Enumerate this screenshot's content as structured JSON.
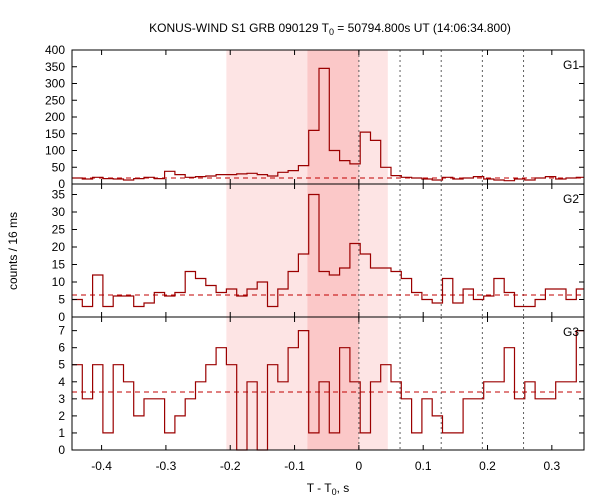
{
  "title": {
    "prefix": "KONUS-WIND S1 GRB 090129 T",
    "sub": "0",
    "suffix": " = 50794.800s UT (14:06:34.800)"
  },
  "colors": {
    "data_line": "#9b0000",
    "background_line": "#c00000",
    "shade_outer": "#fde4e4",
    "shade_inner": "#fbc8c8",
    "frame": "#000000",
    "marker_lines": "#606060"
  },
  "chart_data": {
    "type": "line",
    "step": true,
    "bin_width_s": 0.016,
    "xlabel": {
      "text": "T - T",
      "sub": "0",
      "suffix": ", s"
    },
    "ylabel": "counts / 16 ms",
    "xlim": [
      -0.446,
      0.35
    ],
    "xticks": [
      -0.4,
      -0.3,
      -0.2,
      -0.1,
      0,
      0.1,
      0.2,
      0.3
    ],
    "xtick_labels": [
      "-0.4",
      "-0.3",
      "-0.2",
      "-0.1",
      "0",
      "0.1",
      "0.2",
      "0.3"
    ],
    "shaded_intervals": [
      {
        "from": -0.206,
        "to": 0.045,
        "shade": "outer"
      },
      {
        "from": -0.08,
        "to": 0.0,
        "shade": "inner"
      }
    ],
    "marker_lines_x": [
      0.0,
      0.064,
      0.128,
      0.192,
      0.256
    ],
    "x_edges": [
      -0.446,
      -0.43,
      -0.414,
      -0.398,
      -0.382,
      -0.366,
      -0.35,
      -0.334,
      -0.318,
      -0.302,
      -0.286,
      -0.27,
      -0.254,
      -0.238,
      -0.222,
      -0.206,
      -0.19,
      -0.174,
      -0.158,
      -0.142,
      -0.126,
      -0.11,
      -0.094,
      -0.078,
      -0.062,
      -0.046,
      -0.03,
      -0.014,
      0.002,
      0.018,
      0.034,
      0.05,
      0.066,
      0.082,
      0.098,
      0.114,
      0.13,
      0.146,
      0.162,
      0.178,
      0.194,
      0.21,
      0.226,
      0.242,
      0.258,
      0.274,
      0.29,
      0.306,
      0.322,
      0.338,
      0.354
    ],
    "panels": [
      {
        "name": "G1",
        "ylim": [
          0,
          400
        ],
        "yticks": [
          0,
          50,
          100,
          150,
          200,
          250,
          300,
          350,
          400
        ],
        "ytick_labels": [
          "0",
          "50",
          "100",
          "150",
          "200",
          "250",
          "300",
          "350",
          "400"
        ],
        "background": 18,
        "values": [
          18,
          15,
          20,
          16,
          15,
          12,
          16,
          20,
          16,
          38,
          28,
          20,
          22,
          24,
          28,
          28,
          30,
          32,
          28,
          24,
          35,
          40,
          55,
          160,
          345,
          100,
          70,
          60,
          155,
          130,
          50,
          25,
          20,
          18,
          15,
          12,
          20,
          15,
          18,
          22,
          15,
          12,
          10,
          15,
          12,
          18,
          22,
          15,
          18,
          20
        ]
      },
      {
        "name": "G2",
        "ylim": [
          0,
          38
        ],
        "yticks": [
          0,
          5,
          10,
          15,
          20,
          25,
          30,
          35
        ],
        "ytick_labels": [
          "0",
          "5",
          "10",
          "15",
          "20",
          "25",
          "30",
          "35"
        ],
        "background": 6.3,
        "values": [
          5,
          3,
          12,
          3,
          6,
          6,
          3,
          4,
          7,
          6,
          7,
          13,
          11,
          9,
          7,
          8,
          6,
          8,
          10,
          3,
          8,
          13,
          18,
          35,
          13,
          12,
          14,
          21,
          18,
          14,
          14,
          13,
          11,
          7,
          5,
          4,
          11,
          4,
          8,
          5,
          6,
          11,
          7,
          3,
          3,
          5,
          8,
          8,
          5,
          8
        ]
      },
      {
        "name": "G3",
        "ylim": [
          0,
          7.8
        ],
        "yticks": [
          0,
          1,
          2,
          3,
          4,
          5,
          6,
          7
        ],
        "ytick_labels": [
          "0",
          "1",
          "2",
          "3",
          "4",
          "5",
          "6",
          "7"
        ],
        "background": 3.4,
        "values": [
          5,
          3,
          5,
          1,
          5,
          4,
          2,
          3,
          3,
          1,
          2,
          3,
          4,
          5,
          6,
          5,
          0,
          4,
          0,
          5,
          4,
          6,
          7,
          1,
          4,
          1,
          6,
          4,
          1,
          4,
          5,
          4,
          3,
          1,
          3,
          2,
          1,
          1,
          3,
          3,
          4,
          4,
          6,
          3,
          4,
          3,
          3,
          4,
          4,
          7
        ]
      }
    ]
  }
}
